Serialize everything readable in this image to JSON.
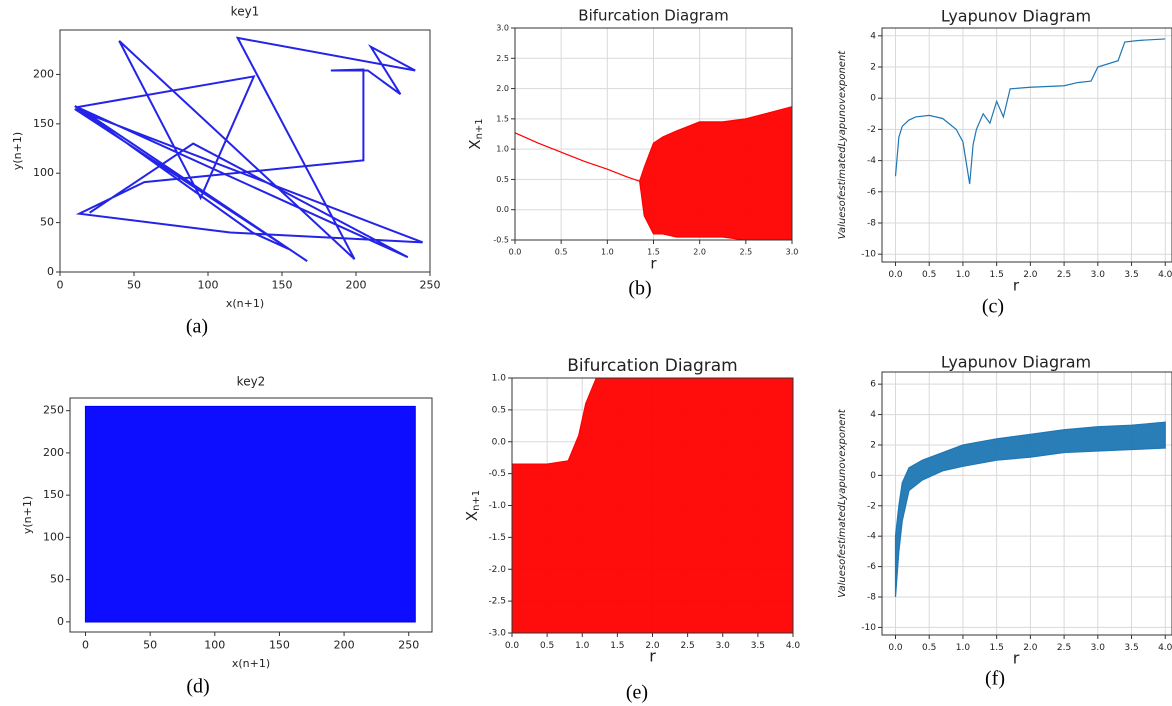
{
  "chart_data": [
    {
      "type": "line",
      "title": "key1",
      "xlabel": "x(n+1)",
      "ylabel": "y(n+1)",
      "caption": "(a)",
      "color": "#2424e8",
      "grid": false,
      "x": [
        167,
        12,
        131,
        95,
        40,
        199,
        120,
        240,
        210,
        230,
        208,
        183,
        205,
        205,
        57,
        13,
        115,
        245,
        10,
        155,
        130,
        10,
        235,
        90,
        20
      ],
      "values": [
        11,
        167,
        198,
        75,
        234,
        13,
        237,
        204,
        228,
        180,
        204,
        204,
        205,
        113,
        91,
        59,
        40,
        30,
        165,
        23,
        40,
        168,
        15,
        130,
        60
      ],
      "xlim": [
        0,
        250
      ],
      "ylim": [
        0,
        245
      ],
      "xticks": [
        0,
        50,
        100,
        150,
        200,
        250
      ],
      "yticks": [
        0,
        50,
        100,
        150,
        200
      ]
    },
    {
      "type": "range",
      "title": "Bifurcation Diagram",
      "xlabel": "r",
      "ylabel": "X",
      "ylabel_subscript": "n+1",
      "caption": "(b)",
      "color": "#ff0000",
      "grid": true,
      "x": [
        0,
        0.25,
        0.5,
        0.75,
        1.0,
        1.2,
        1.35,
        1.4,
        1.5,
        1.6,
        1.75,
        2.0,
        2.25,
        2.5,
        2.75,
        3.0
      ],
      "lower": [
        1.27,
        1.1,
        0.95,
        0.8,
        0.67,
        0.55,
        0.47,
        -0.1,
        -0.4,
        -0.4,
        -0.45,
        -0.45,
        -0.45,
        -0.5,
        -0.5,
        -0.5
      ],
      "upper": [
        1.27,
        1.1,
        0.95,
        0.8,
        0.67,
        0.55,
        0.47,
        0.7,
        1.1,
        1.2,
        1.3,
        1.45,
        1.45,
        1.5,
        1.6,
        1.7
      ],
      "xlim": [
        0,
        3
      ],
      "ylim": [
        -0.5,
        3
      ],
      "xticks": [
        {
          "value": 0,
          "label": "0.0"
        },
        0.5,
        {
          "value": 1,
          "label": "1.0"
        },
        1.5,
        {
          "value": 2,
          "label": "2.0"
        },
        2.5,
        {
          "value": 3,
          "label": "3.0"
        }
      ],
      "yticks": [
        -0.5,
        {
          "value": 0,
          "label": "0.0"
        },
        0.5,
        {
          "value": 1,
          "label": "1.0"
        },
        1.5,
        {
          "value": 2,
          "label": "2.0"
        },
        2.5,
        {
          "value": 3,
          "label": "3.0"
        }
      ]
    },
    {
      "type": "line",
      "title": "Lyapunov Diagram",
      "xlabel": "r",
      "ylabel": "ValuesofestimatedLyapunovexponent",
      "caption": "(c)",
      "color": "#1f77b4",
      "grid": true,
      "x": [
        0,
        0.05,
        0.1,
        0.2,
        0.3,
        0.5,
        0.7,
        0.9,
        1.0,
        1.1,
        1.15,
        1.2,
        1.3,
        1.4,
        1.5,
        1.6,
        1.7,
        2.0,
        2.5,
        2.7,
        2.9,
        3.0,
        3.3,
        3.4,
        3.6,
        4.0
      ],
      "values": [
        -5,
        -2.5,
        -1.8,
        -1.4,
        -1.2,
        -1.1,
        -1.3,
        -2,
        -2.8,
        -5.5,
        -3,
        -2,
        -1,
        -1.6,
        -0.2,
        -1.2,
        0.6,
        0.7,
        0.8,
        1.0,
        1.1,
        2,
        2.4,
        3.6,
        3.7,
        3.8
      ],
      "xlim": [
        -0.2,
        4.1
      ],
      "ylim": [
        -10.5,
        4.5
      ],
      "xticks": [
        {
          "value": 0,
          "label": "0.0"
        },
        0.5,
        {
          "value": 1,
          "label": "1.0"
        },
        1.5,
        {
          "value": 2,
          "label": "2.0"
        },
        2.5,
        {
          "value": 3,
          "label": "3.0"
        },
        3.5,
        {
          "value": 4,
          "label": "4.0"
        }
      ],
      "yticks": [
        -10,
        -8,
        -6,
        -4,
        -2,
        0,
        2,
        4
      ]
    },
    {
      "type": "range",
      "title": "key2",
      "xlabel": "x(n+1)",
      "ylabel": "y(n+1)",
      "caption": "(d)",
      "color": "#0000ff",
      "grid": false,
      "x": [
        0,
        255
      ],
      "lower": [
        0,
        0
      ],
      "upper": [
        255,
        255
      ],
      "xlim": [
        -12,
        268
      ],
      "ylim": [
        -12,
        265
      ],
      "xticks": [
        0,
        50,
        100,
        150,
        200,
        250
      ],
      "yticks": [
        0,
        50,
        100,
        150,
        200,
        250
      ]
    },
    {
      "type": "range",
      "title": "Bifurcation Diagram",
      "xlabel": "r",
      "ylabel": "X",
      "ylabel_subscript": "n+1",
      "caption": "(e)",
      "color": "#ff0000",
      "grid": true,
      "x": [
        0,
        0.5,
        0.8,
        0.95,
        1.05,
        1.2,
        2.0,
        3.0,
        4.0
      ],
      "lower": [
        -3,
        -3,
        -3,
        -3,
        -3,
        -3,
        -3,
        -3,
        -3
      ],
      "upper": [
        -0.35,
        -0.35,
        -0.3,
        0.1,
        0.6,
        1.0,
        1.0,
        1.0,
        1.0
      ],
      "xlim": [
        0,
        4
      ],
      "ylim": [
        -3,
        1
      ],
      "xticks": [
        {
          "value": 0,
          "label": "0.0"
        },
        0.5,
        {
          "value": 1,
          "label": "1.0"
        },
        1.5,
        {
          "value": 2,
          "label": "2.0"
        },
        2.5,
        {
          "value": 3,
          "label": "3.0"
        },
        3.5,
        {
          "value": 4,
          "label": "4.0"
        }
      ],
      "yticks": [
        {
          "value": -3,
          "label": "-3.0"
        },
        -2.5,
        {
          "value": -2,
          "label": "-2.0"
        },
        -1.5,
        {
          "value": -1,
          "label": "-1.0"
        },
        -0.5,
        {
          "value": 0,
          "label": "0.0"
        },
        0.5,
        {
          "value": 1,
          "label": "1.0"
        }
      ]
    },
    {
      "type": "range",
      "title": "Lyapunov Diagram",
      "xlabel": "r",
      "ylabel": "ValuesofestimatedLyapunovexponent",
      "caption": "(f)",
      "color": "#1f77b4",
      "grid": true,
      "x": [
        0,
        0.05,
        0.1,
        0.2,
        0.4,
        0.7,
        1.0,
        1.5,
        2.0,
        2.5,
        3.0,
        3.5,
        4.0
      ],
      "lower": [
        -8,
        -5,
        -3,
        -1,
        -0.3,
        0.3,
        0.6,
        1,
        1.2,
        1.5,
        1.6,
        1.7,
        1.8
      ],
      "upper": [
        -4,
        -2,
        -0.5,
        0.5,
        1,
        1.5,
        2,
        2.4,
        2.7,
        3,
        3.2,
        3.3,
        3.5
      ],
      "xlim": [
        -0.2,
        4.1
      ],
      "ylim": [
        -10.5,
        6.8
      ],
      "xticks": [
        {
          "value": 0,
          "label": "0.0"
        },
        0.5,
        {
          "value": 1,
          "label": "1.0"
        },
        1.5,
        {
          "value": 2,
          "label": "2.0"
        },
        2.5,
        {
          "value": 3,
          "label": "3.0"
        },
        3.5,
        {
          "value": 4,
          "label": "4.0"
        }
      ],
      "yticks": [
        -10,
        -8,
        -6,
        -4,
        -2,
        0,
        2,
        4,
        6
      ]
    }
  ]
}
